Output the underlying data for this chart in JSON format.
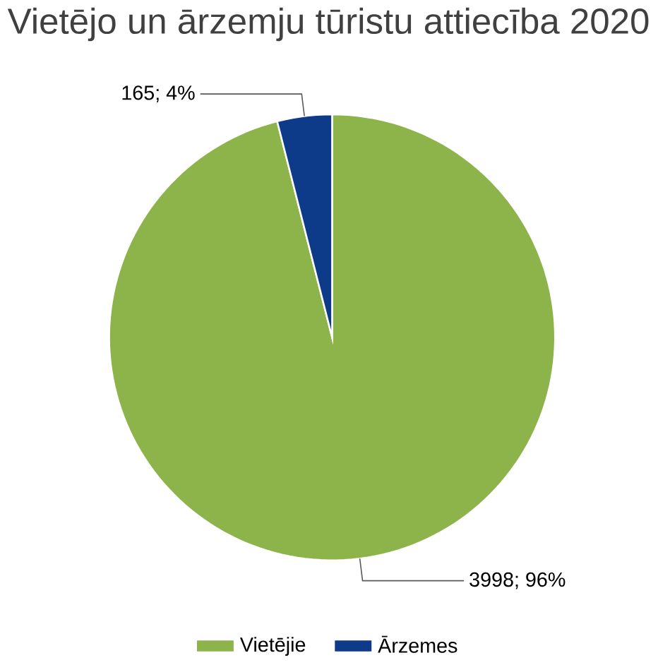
{
  "chart_data": {
    "type": "pie",
    "title": "Vietējo un ārzemju tūristu attiecība 2020",
    "categories": [
      "Vietējie",
      "Ārzemes"
    ],
    "values": [
      3998,
      165
    ],
    "colors": [
      "#8cb44a",
      "#0e3a8a"
    ],
    "value_labels": [
      "3998; 96%",
      "165; 4%"
    ],
    "legend": "bottom"
  }
}
